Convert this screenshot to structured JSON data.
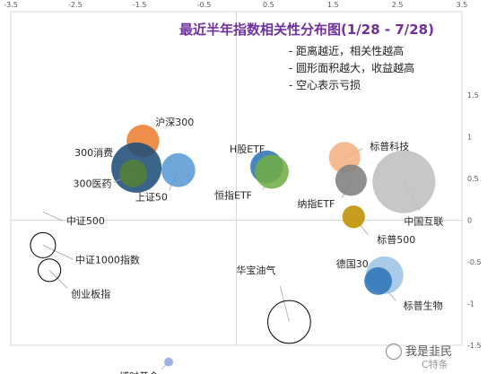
{
  "chart_data": {
    "type": "scatter",
    "title": "最近半年指数相关性分布图(1/28 - 7/28)",
    "notes": [
      "- 距离越近，相关性越高",
      "- 圆形面积越大，收益越高",
      "- 空心表示亏损"
    ],
    "xlim": [
      -3.5,
      3.5
    ],
    "ylim": [
      -1.5,
      2.5
    ],
    "x_ticks": [
      "-3.5",
      "-2.5",
      "-1.5",
      "-0.5",
      "0.5",
      "1.5",
      "2.5",
      "3.5"
    ],
    "y_ticks": [
      "1.5",
      "1",
      "0.5",
      "0",
      "-0.5",
      "-1",
      "-1.5"
    ],
    "points": [
      {
        "label": "沪深300",
        "x": -1.45,
        "y": 0.95,
        "size": 0.26,
        "filled": true,
        "color": "#ed7d31"
      },
      {
        "label": "300消费",
        "x": -1.55,
        "y": 0.63,
        "size": 0.4,
        "filled": true,
        "color": "#1f4e79"
      },
      {
        "label": "300医药",
        "x": -1.6,
        "y": 0.56,
        "size": 0.22,
        "filled": true,
        "color": "#548235"
      },
      {
        "label": "上证50",
        "x": -0.9,
        "y": 0.6,
        "size": 0.27,
        "filled": true,
        "color": "#5b9bd5"
      },
      {
        "label": "H股ETF",
        "x": 0.47,
        "y": 0.64,
        "size": 0.26,
        "filled": true,
        "color": "#2e75b6"
      },
      {
        "label": "恒指ETF",
        "x": 0.55,
        "y": 0.58,
        "size": 0.27,
        "filled": true,
        "color": "#70ad47"
      },
      {
        "label": "标普科技",
        "x": 1.68,
        "y": 0.75,
        "size": 0.25,
        "filled": true,
        "color": "#f4b183"
      },
      {
        "label": "纳指ETF",
        "x": 1.78,
        "y": 0.48,
        "size": 0.25,
        "filled": true,
        "color": "#7f7f7f"
      },
      {
        "label": "中国互联",
        "x": 2.6,
        "y": 0.46,
        "size": 0.5,
        "filled": true,
        "color": "#bfbfbf"
      },
      {
        "label": "标普500",
        "x": 1.82,
        "y": 0.04,
        "size": 0.18,
        "filled": true,
        "color": "#bf9000"
      },
      {
        "label": "德国30",
        "x": 2.3,
        "y": -0.66,
        "size": 0.3,
        "filled": true,
        "color": "#9dc3e6"
      },
      {
        "label": "标普生物",
        "x": 2.2,
        "y": -0.73,
        "size": 0.22,
        "filled": true,
        "color": "#2e75b6"
      },
      {
        "label": "中证500",
        "x": -3.0,
        "y": 0.1,
        "size": 0.0,
        "filled": false,
        "color": "#000000"
      },
      {
        "label": "中证1000指数",
        "x": -3.0,
        "y": -0.3,
        "size": 0.2,
        "filled": false,
        "color": "#000000"
      },
      {
        "label": "创业板指",
        "x": -2.9,
        "y": -0.6,
        "size": 0.18,
        "filled": false,
        "color": "#000000"
      },
      {
        "label": "华宝油气",
        "x": 0.82,
        "y": -1.22,
        "size": 0.34,
        "filled": false,
        "color": "#000000"
      },
      {
        "label": "博时黄金",
        "x": -1.05,
        "y": -1.7,
        "size": 0.0,
        "filled": true,
        "color": "#8faadc"
      }
    ]
  },
  "watermark": {
    "text": "我是韭民",
    "sub": "C特条"
  }
}
